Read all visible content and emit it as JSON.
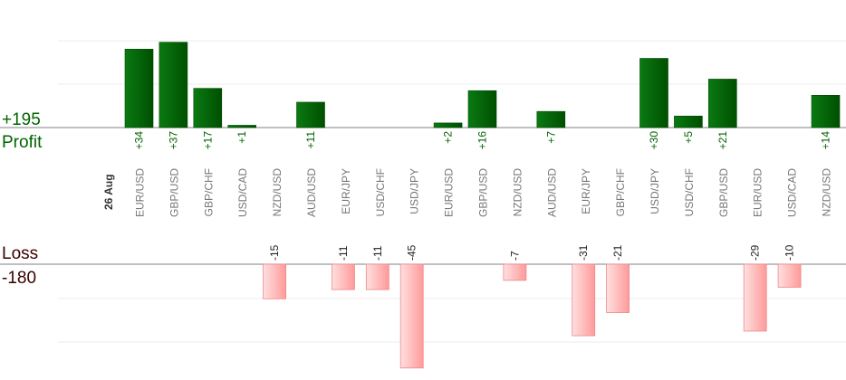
{
  "summary": {
    "profit_total": "+195",
    "profit_label": "Profit",
    "loss_label": "Loss",
    "loss_total": "-180",
    "date_label": "26 Aug"
  },
  "colors": {
    "profit_top": "#0a7a12",
    "profit_bottom": "#004f00",
    "loss_top": "#ffe0e0",
    "loss_bottom": "#ff9a9a",
    "profit_text": "#006400",
    "loss_text": "#3a0000",
    "pair_text": "#777777",
    "gridline": "#ececec",
    "axis": "#808080"
  },
  "chart_data": {
    "type": "bar",
    "title": "",
    "categories": [
      "EUR/USD",
      "GBP/USD",
      "GBP/CHF",
      "USD/CAD",
      "NZD/USD",
      "AUD/USD",
      "EUR/JPY",
      "USD/CHF",
      "USD/JPY",
      "EUR/USD",
      "GBP/USD",
      "NZD/USD",
      "AUD/USD",
      "EUR/JPY",
      "GBP/CHF",
      "USD/JPY",
      "USD/CHF",
      "GBP/USD",
      "EUR/USD",
      "USD/CAD",
      "NZD/USD"
    ],
    "values": [
      34,
      37,
      17,
      1,
      -15,
      11,
      -11,
      -11,
      -45,
      2,
      16,
      -7,
      7,
      -31,
      -21,
      30,
      5,
      21,
      -29,
      -10,
      14
    ],
    "value_labels": [
      "+34",
      "+37",
      "+17",
      "+1",
      "-15",
      "+11",
      "-11",
      "-11",
      "-45",
      "+2",
      "+16",
      "-7",
      "+7",
      "-31",
      "-21",
      "+30",
      "+5",
      "+21",
      "-29",
      "-10",
      "+14"
    ],
    "grid": true
  }
}
